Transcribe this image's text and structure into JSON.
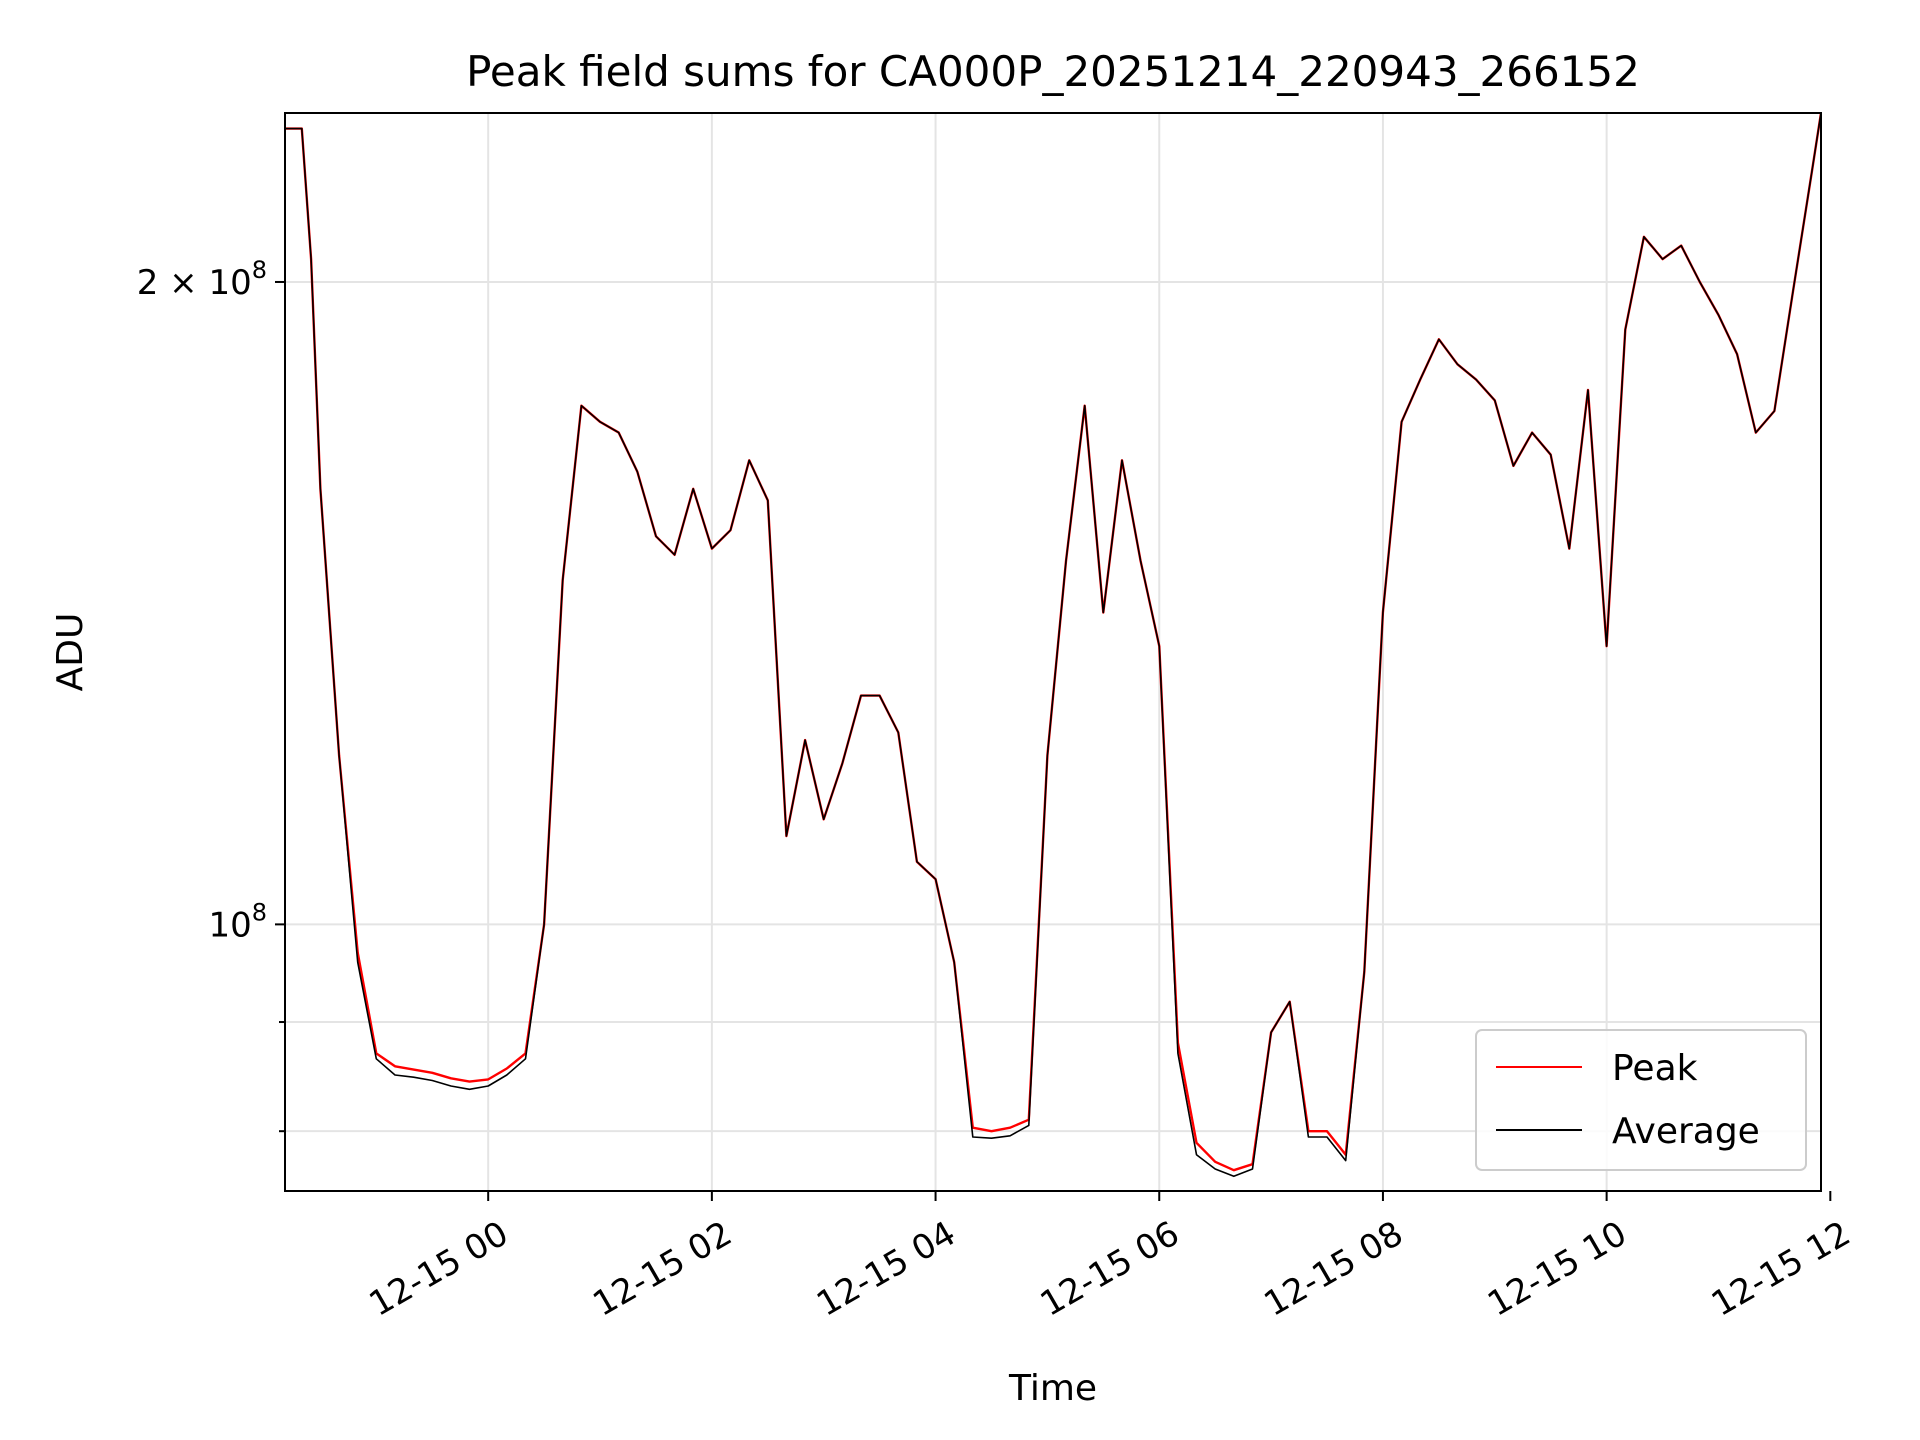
{
  "chart_data": {
    "type": "line",
    "title": "Peak field sums for CA000P_20251214_220943_266152",
    "xlabel": "Time",
    "ylabel": "ADU",
    "yscale": "log",
    "grid": true,
    "legend_position": "lower-right",
    "xlim": [
      "2025-12-14 22:11",
      "2025-12-15 11:55"
    ],
    "ylim": [
      75000000,
      240000000
    ],
    "x_ticks": [
      "12-15 00",
      "12-15 02",
      "12-15 04",
      "12-15 06",
      "12-15 08",
      "12-15 10",
      "12-15 12"
    ],
    "x_tick_times": [
      "2025-12-15 00:00",
      "2025-12-15 02:00",
      "2025-12-15 04:00",
      "2025-12-15 06:00",
      "2025-12-15 08:00",
      "2025-12-15 10:00",
      "2025-12-15 12:00"
    ],
    "y_ticks": [
      {
        "value": 100000000,
        "base": "10",
        "exp": "8",
        "coef": ""
      },
      {
        "value": 200000000,
        "base": "10",
        "exp": "8",
        "coef": "2 × "
      }
    ],
    "y_minor_ticks": [
      80000000,
      90000000
    ],
    "colors": {
      "Peak": "#ff0000",
      "Average": "#000000"
    },
    "series": [
      {
        "name": "Peak",
        "x": [
          "2025-12-14 22:11",
          "2025-12-14 22:20",
          "2025-12-14 22:25",
          "2025-12-14 22:30",
          "2025-12-14 22:40",
          "2025-12-14 22:50",
          "2025-12-14 23:00",
          "2025-12-14 23:10",
          "2025-12-14 23:20",
          "2025-12-14 23:30",
          "2025-12-14 23:40",
          "2025-12-14 23:50",
          "2025-12-15 00:00",
          "2025-12-15 00:10",
          "2025-12-15 00:20",
          "2025-12-15 00:30",
          "2025-12-15 00:40",
          "2025-12-15 00:50",
          "2025-12-15 01:00",
          "2025-12-15 01:10",
          "2025-12-15 01:20",
          "2025-12-15 01:30",
          "2025-12-15 01:40",
          "2025-12-15 01:50",
          "2025-12-15 02:00",
          "2025-12-15 02:10",
          "2025-12-15 02:20",
          "2025-12-15 02:30",
          "2025-12-15 02:40",
          "2025-12-15 02:50",
          "2025-12-15 03:00",
          "2025-12-15 03:10",
          "2025-12-15 03:20",
          "2025-12-15 03:30",
          "2025-12-15 03:40",
          "2025-12-15 03:50",
          "2025-12-15 04:00",
          "2025-12-15 04:10",
          "2025-12-15 04:20",
          "2025-12-15 04:30",
          "2025-12-15 04:40",
          "2025-12-15 04:50",
          "2025-12-15 05:00",
          "2025-12-15 05:10",
          "2025-12-15 05:20",
          "2025-12-15 05:30",
          "2025-12-15 05:40",
          "2025-12-15 05:50",
          "2025-12-15 06:00",
          "2025-12-15 06:10",
          "2025-12-15 06:20",
          "2025-12-15 06:30",
          "2025-12-15 06:40",
          "2025-12-15 06:50",
          "2025-12-15 07:00",
          "2025-12-15 07:10",
          "2025-12-15 07:20",
          "2025-12-15 07:30",
          "2025-12-15 07:40",
          "2025-12-15 07:50",
          "2025-12-15 08:00",
          "2025-12-15 08:10",
          "2025-12-15 08:20",
          "2025-12-15 08:30",
          "2025-12-15 08:40",
          "2025-12-15 08:50",
          "2025-12-15 09:00",
          "2025-12-15 09:10",
          "2025-12-15 09:20",
          "2025-12-15 09:30",
          "2025-12-15 09:40",
          "2025-12-15 09:50",
          "2025-12-15 10:00",
          "2025-12-15 10:10",
          "2025-12-15 10:20",
          "2025-12-15 10:30",
          "2025-12-15 10:40",
          "2025-12-15 10:50",
          "2025-12-15 11:00",
          "2025-12-15 11:10",
          "2025-12-15 11:20",
          "2025-12-15 11:30",
          "2025-12-15 11:40",
          "2025-12-15 11:50",
          "2025-12-15 11:55"
        ],
        "values": [
          236000000,
          236000000,
          205000000,
          160000000,
          120000000,
          97000000,
          87000000,
          85800000,
          85500000,
          85200000,
          84700000,
          84400000,
          84600000,
          85600000,
          87000000,
          100000000,
          145000000,
          175000000,
          172000000,
          170000000,
          163000000,
          152000000,
          149000000,
          160000000,
          150000000,
          153000000,
          165000000,
          158000000,
          110000000,
          122000000,
          112000000,
          119000000,
          128000000,
          128000000,
          123000000,
          107000000,
          105000000,
          96000000,
          80300000,
          80000000,
          80300000,
          81000000,
          120000000,
          148000000,
          175000000,
          140000000,
          165000000,
          148000000,
          135000000,
          88000000,
          79000000,
          77400000,
          76700000,
          77200000,
          89000000,
          92000000,
          80000000,
          80000000,
          78000000,
          95000000,
          140000000,
          172000000,
          180000000,
          188000000,
          183000000,
          180000000,
          176000000,
          164000000,
          170000000,
          166000000,
          150000000,
          178000000,
          135000000,
          190000000,
          210000000,
          205000000,
          208000000,
          200000000,
          193000000,
          185000000,
          170000000,
          174000000,
          198000000,
          225000000,
          240000000
        ]
      },
      {
        "name": "Average",
        "x": [
          "2025-12-14 22:11",
          "2025-12-14 22:20",
          "2025-12-14 22:25",
          "2025-12-14 22:30",
          "2025-12-14 22:40",
          "2025-12-14 22:50",
          "2025-12-14 23:00",
          "2025-12-14 23:10",
          "2025-12-14 23:20",
          "2025-12-14 23:30",
          "2025-12-14 23:40",
          "2025-12-14 23:50",
          "2025-12-15 00:00",
          "2025-12-15 00:10",
          "2025-12-15 00:20",
          "2025-12-15 00:30",
          "2025-12-15 00:40",
          "2025-12-15 00:50",
          "2025-12-15 01:00",
          "2025-12-15 01:10",
          "2025-12-15 01:20",
          "2025-12-15 01:30",
          "2025-12-15 01:40",
          "2025-12-15 01:50",
          "2025-12-15 02:00",
          "2025-12-15 02:10",
          "2025-12-15 02:20",
          "2025-12-15 02:30",
          "2025-12-15 02:40",
          "2025-12-15 02:50",
          "2025-12-15 03:00",
          "2025-12-15 03:10",
          "2025-12-15 03:20",
          "2025-12-15 03:30",
          "2025-12-15 03:40",
          "2025-12-15 03:50",
          "2025-12-15 04:00",
          "2025-12-15 04:10",
          "2025-12-15 04:20",
          "2025-12-15 04:30",
          "2025-12-15 04:40",
          "2025-12-15 04:50",
          "2025-12-15 05:00",
          "2025-12-15 05:10",
          "2025-12-15 05:20",
          "2025-12-15 05:30",
          "2025-12-15 05:40",
          "2025-12-15 05:50",
          "2025-12-15 06:00",
          "2025-12-15 06:10",
          "2025-12-15 06:20",
          "2025-12-15 06:30",
          "2025-12-15 06:40",
          "2025-12-15 06:50",
          "2025-12-15 07:00",
          "2025-12-15 07:10",
          "2025-12-15 07:20",
          "2025-12-15 07:30",
          "2025-12-15 07:40",
          "2025-12-15 07:50",
          "2025-12-15 08:00",
          "2025-12-15 08:10",
          "2025-12-15 08:20",
          "2025-12-15 08:30",
          "2025-12-15 08:40",
          "2025-12-15 08:50",
          "2025-12-15 09:00",
          "2025-12-15 09:10",
          "2025-12-15 09:20",
          "2025-12-15 09:30",
          "2025-12-15 09:40",
          "2025-12-15 09:50",
          "2025-12-15 10:00",
          "2025-12-15 10:10",
          "2025-12-15 10:20",
          "2025-12-15 10:30",
          "2025-12-15 10:40",
          "2025-12-15 10:50",
          "2025-12-15 11:00",
          "2025-12-15 11:10",
          "2025-12-15 11:20",
          "2025-12-15 11:30",
          "2025-12-15 11:40",
          "2025-12-15 11:50",
          "2025-12-15 11:55"
        ],
        "values": [
          236000000,
          236000000,
          205000000,
          160000000,
          120000000,
          96000000,
          86500000,
          85000000,
          84800000,
          84500000,
          84000000,
          83700000,
          84000000,
          85000000,
          86500000,
          100000000,
          145000000,
          175000000,
          172000000,
          170000000,
          163000000,
          152000000,
          149000000,
          160000000,
          150000000,
          153000000,
          165000000,
          158000000,
          110000000,
          122000000,
          112000000,
          119000000,
          128000000,
          128000000,
          123000000,
          107000000,
          105000000,
          96000000,
          79500000,
          79400000,
          79600000,
          80500000,
          120000000,
          148000000,
          175000000,
          140000000,
          165000000,
          148000000,
          135000000,
          87000000,
          78000000,
          76800000,
          76200000,
          76800000,
          89000000,
          92000000,
          79500000,
          79500000,
          77500000,
          95000000,
          140000000,
          172000000,
          180000000,
          188000000,
          183000000,
          180000000,
          176000000,
          164000000,
          170000000,
          166000000,
          150000000,
          178000000,
          135000000,
          190000000,
          210000000,
          205000000,
          208000000,
          200000000,
          193000000,
          185000000,
          170000000,
          174000000,
          198000000,
          225000000,
          240000000
        ]
      }
    ]
  }
}
